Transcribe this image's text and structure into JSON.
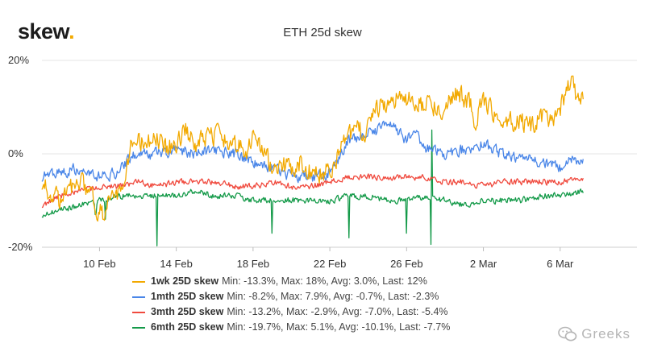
{
  "logo": {
    "text": "skew",
    "dot": "."
  },
  "chart_data": {
    "type": "line",
    "title": "ETH 25d skew",
    "xlabel": "",
    "ylabel": "",
    "x_range": [
      0,
      31
    ],
    "ylim": [
      -20,
      20
    ],
    "y_ticks": [
      {
        "value": 20,
        "label": "20%"
      },
      {
        "value": 0,
        "label": "0%"
      },
      {
        "value": -20,
        "label": "-20%"
      }
    ],
    "x_ticks": [
      {
        "day": 3,
        "label": "10 Feb"
      },
      {
        "day": 7,
        "label": "14 Feb"
      },
      {
        "day": 11,
        "label": "18 Feb"
      },
      {
        "day": 15,
        "label": "22 Feb"
      },
      {
        "day": 19,
        "label": "26 Feb"
      },
      {
        "day": 23,
        "label": "2 Mar"
      },
      {
        "day": 27,
        "label": "6 Mar"
      }
    ],
    "series": [
      {
        "name": "1wk 25D skew",
        "stats": "Min: -13.3%, Max: 18%, Avg: 3.0%, Last: 12%",
        "color": "#f2a900",
        "noise": 3.0,
        "points": [
          [
            0,
            -6
          ],
          [
            0.5,
            -9
          ],
          [
            1,
            -10
          ],
          [
            1.5,
            -7
          ],
          [
            2,
            -6
          ],
          [
            2.5,
            -8
          ],
          [
            2.9,
            -12
          ],
          [
            3.2,
            -13
          ],
          [
            3.5,
            -10
          ],
          [
            3.8,
            -8
          ],
          [
            4.2,
            -9
          ],
          [
            4.4,
            -4
          ],
          [
            4.6,
            2
          ],
          [
            5,
            3
          ],
          [
            5.5,
            2
          ],
          [
            6,
            3
          ],
          [
            6.5,
            1
          ],
          [
            7,
            2
          ],
          [
            7.5,
            5
          ],
          [
            8,
            2
          ],
          [
            8.5,
            3
          ],
          [
            9,
            4
          ],
          [
            9.5,
            3
          ],
          [
            10,
            3
          ],
          [
            10.5,
            0
          ],
          [
            11,
            3
          ],
          [
            11.5,
            1
          ],
          [
            12,
            -3
          ],
          [
            12.5,
            -2
          ],
          [
            13,
            -4
          ],
          [
            13.5,
            -2
          ],
          [
            14,
            -4
          ],
          [
            14.5,
            -4
          ],
          [
            15,
            -3
          ],
          [
            15.3,
            -2
          ],
          [
            15.6,
            2
          ],
          [
            16,
            4
          ],
          [
            16.5,
            5
          ],
          [
            17,
            5
          ],
          [
            17.5,
            10
          ],
          [
            18,
            11
          ],
          [
            18.5,
            12
          ],
          [
            19,
            12
          ],
          [
            19.5,
            10
          ],
          [
            20,
            11
          ],
          [
            20.5,
            10
          ],
          [
            21,
            10
          ],
          [
            21.5,
            13
          ],
          [
            22,
            12
          ],
          [
            22.3,
            11
          ],
          [
            22.6,
            6
          ],
          [
            22.9,
            12
          ],
          [
            23.3,
            10
          ],
          [
            23.6,
            9
          ],
          [
            24,
            8
          ],
          [
            24.5,
            7
          ],
          [
            25,
            7
          ],
          [
            25.5,
            6
          ],
          [
            26,
            8
          ],
          [
            26.5,
            7
          ],
          [
            27,
            10
          ],
          [
            27.3,
            13
          ],
          [
            27.6,
            17
          ],
          [
            27.9,
            11
          ],
          [
            28.2,
            12
          ]
        ]
      },
      {
        "name": "1mth 25D skew",
        "stats": "Min: -8.2%, Max: 7.9%, Avg: -0.7%, Last: -2.3%",
        "color": "#4a86e8",
        "noise": 1.7,
        "points": [
          [
            0,
            -5
          ],
          [
            1,
            -4
          ],
          [
            2,
            -3
          ],
          [
            3,
            -5
          ],
          [
            4,
            -4
          ],
          [
            4.5,
            -1
          ],
          [
            5,
            0
          ],
          [
            6,
            0
          ],
          [
            7,
            1
          ],
          [
            8,
            0
          ],
          [
            9,
            1
          ],
          [
            10,
            0
          ],
          [
            11,
            -2
          ],
          [
            11.5,
            -3
          ],
          [
            12,
            -3
          ],
          [
            13,
            -5
          ],
          [
            14,
            -5
          ],
          [
            15,
            -4
          ],
          [
            15.5,
            -1
          ],
          [
            16,
            3
          ],
          [
            17,
            4
          ],
          [
            18,
            6
          ],
          [
            18.5,
            5
          ],
          [
            19,
            3
          ],
          [
            19.5,
            4
          ],
          [
            20,
            1
          ],
          [
            21,
            0
          ],
          [
            22,
            1
          ],
          [
            22.5,
            1
          ],
          [
            23,
            2
          ],
          [
            23.5,
            1
          ],
          [
            24,
            0
          ],
          [
            25,
            -1
          ],
          [
            26,
            -2
          ],
          [
            27,
            -3
          ],
          [
            27.5,
            -1
          ],
          [
            28.2,
            -2
          ]
        ]
      },
      {
        "name": "3mth 25D skew",
        "stats": "Min: -13.2%, Max: -2.9%, Avg: -7.0%, Last: -5.4%",
        "color": "#f04a3e",
        "noise": 0.9,
        "points": [
          [
            0,
            -11
          ],
          [
            1,
            -9
          ],
          [
            2,
            -8
          ],
          [
            3,
            -7
          ],
          [
            4,
            -7
          ],
          [
            5,
            -6
          ],
          [
            6,
            -7
          ],
          [
            7,
            -6
          ],
          [
            8,
            -6
          ],
          [
            9,
            -6
          ],
          [
            10,
            -7
          ],
          [
            11,
            -7
          ],
          [
            12,
            -6
          ],
          [
            13,
            -7
          ],
          [
            14,
            -7
          ],
          [
            15,
            -6
          ],
          [
            16,
            -5
          ],
          [
            17,
            -5
          ],
          [
            18,
            -5
          ],
          [
            19,
            -5
          ],
          [
            20,
            -5
          ],
          [
            21,
            -6
          ],
          [
            22,
            -6
          ],
          [
            23,
            -7
          ],
          [
            24,
            -6
          ],
          [
            25,
            -6
          ],
          [
            26,
            -6
          ],
          [
            27,
            -6
          ],
          [
            28.2,
            -5
          ]
        ]
      },
      {
        "name": "6mth 25D skew",
        "stats": "Min: -19.7%, Max: 5.1%, Avg: -10.1%, Last: -7.7%",
        "color": "#149a49",
        "noise": 0.9,
        "points": [
          [
            0,
            -13
          ],
          [
            1,
            -12
          ],
          [
            2,
            -11
          ],
          [
            3,
            -10
          ],
          [
            4,
            -9
          ],
          [
            5,
            -9
          ],
          [
            6,
            -9
          ],
          [
            7,
            -9
          ],
          [
            8,
            -8
          ],
          [
            9,
            -9
          ],
          [
            10,
            -9
          ],
          [
            11,
            -10
          ],
          [
            12,
            -10
          ],
          [
            13,
            -10
          ],
          [
            14,
            -10
          ],
          [
            15,
            -10
          ],
          [
            16,
            -9
          ],
          [
            17,
            -9
          ],
          [
            18,
            -10
          ],
          [
            19,
            -10
          ],
          [
            20,
            -9
          ],
          [
            21,
            -10
          ],
          [
            22,
            -11
          ],
          [
            23,
            -10
          ],
          [
            24,
            -10
          ],
          [
            25,
            -10
          ],
          [
            26,
            -9
          ],
          [
            27,
            -9
          ],
          [
            28.2,
            -8
          ]
        ],
        "spikes": [
          [
            2.8,
            -13
          ],
          [
            3.3,
            -14
          ],
          [
            6.0,
            -19.7
          ],
          [
            12.0,
            -17
          ],
          [
            16.0,
            -18
          ],
          [
            19.0,
            -17
          ],
          [
            20.3,
            5.1
          ],
          [
            20.25,
            -19.4
          ]
        ]
      }
    ]
  },
  "watermark": {
    "text": "Greeks"
  }
}
